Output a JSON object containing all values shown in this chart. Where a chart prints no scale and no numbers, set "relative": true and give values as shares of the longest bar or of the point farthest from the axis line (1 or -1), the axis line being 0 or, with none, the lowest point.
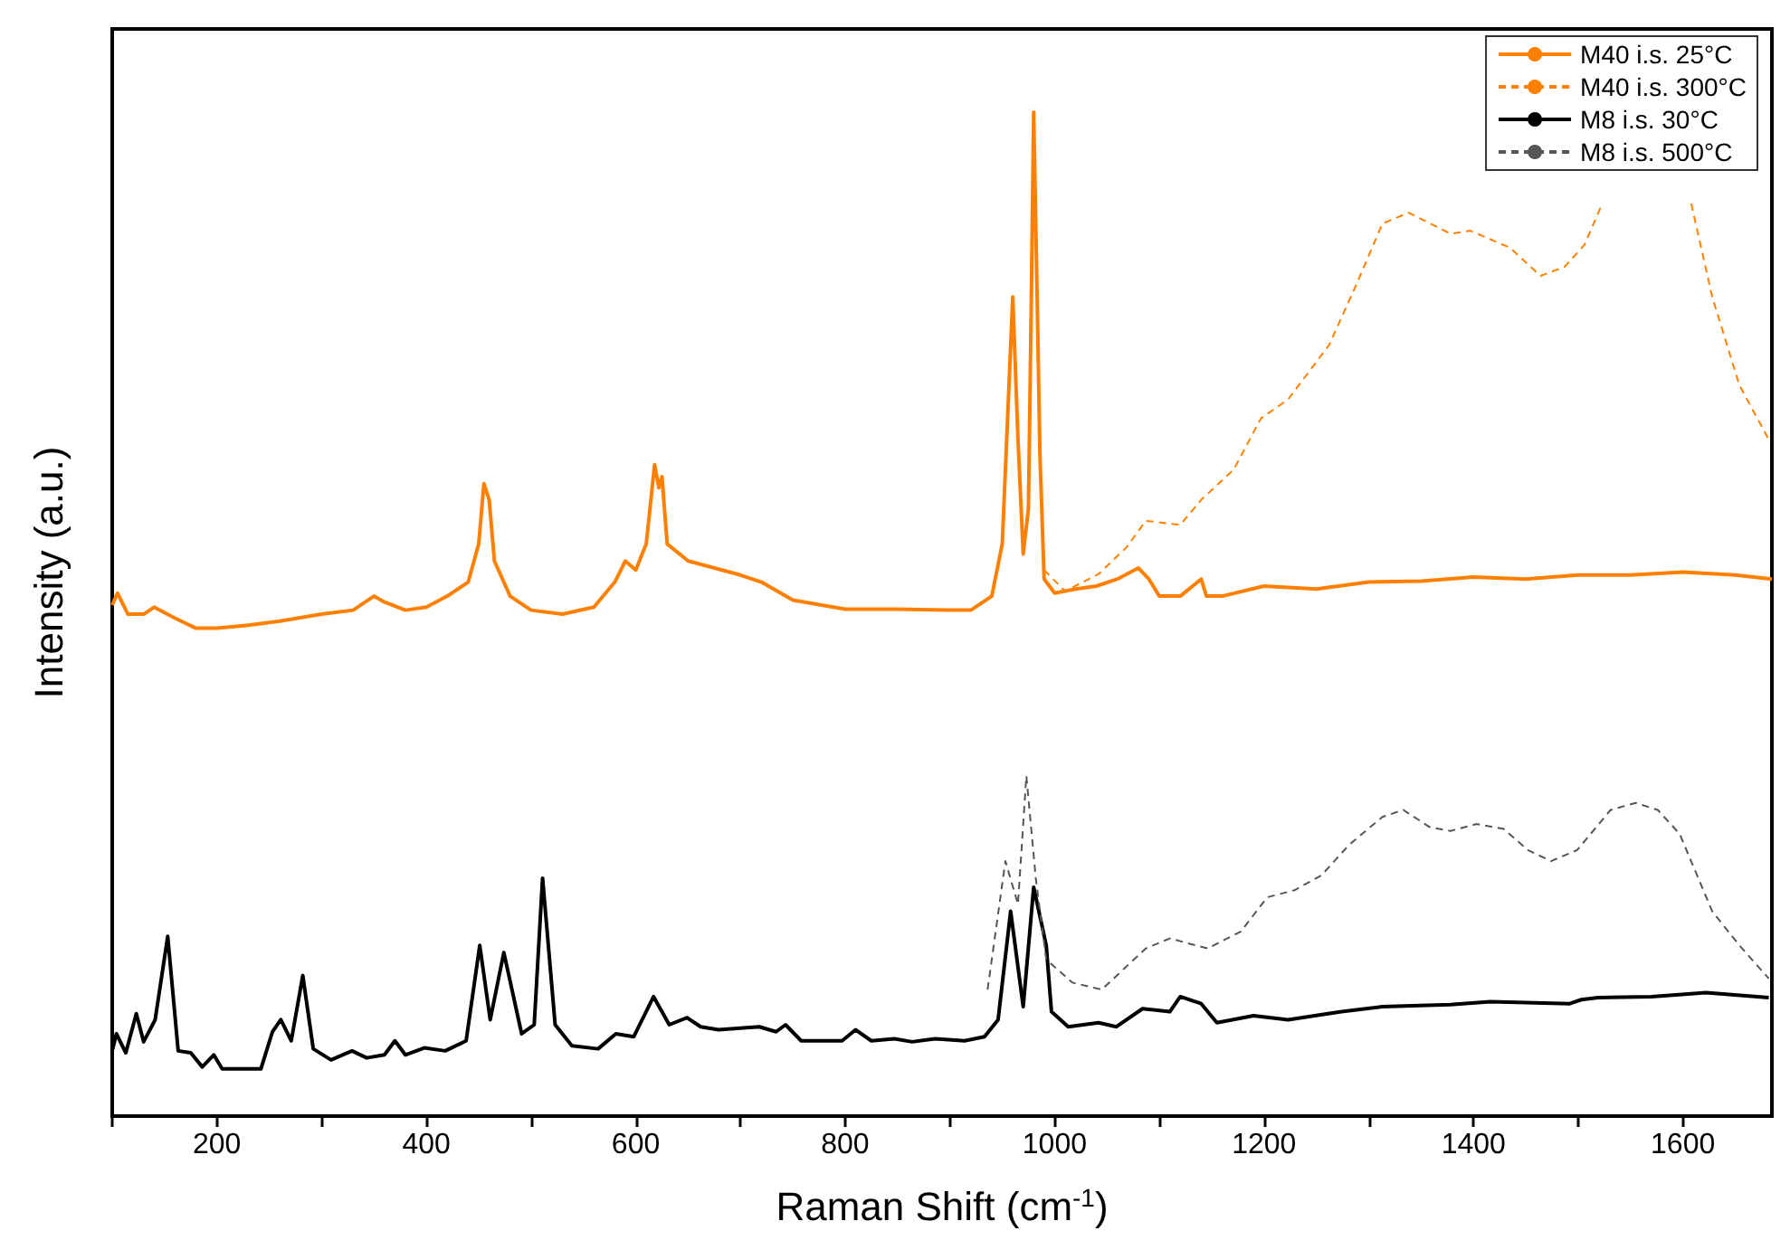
{
  "chart_data": {
    "type": "line",
    "relative": true,
    "xlabel": "Raman Shift (cm$^{-1}$)",
    "ylabel": "Intensity (a.u.)",
    "xlim": [
      100,
      1685
    ],
    "xticks": [
      {
        "value": 100,
        "label": null
      },
      200,
      {
        "value": 300,
        "label": null
      },
      400,
      {
        "value": 500,
        "label": null
      },
      600,
      {
        "value": 700,
        "label": null
      },
      800,
      {
        "value": 900,
        "label": null
      },
      1000,
      {
        "value": 1100,
        "label": null
      },
      1200,
      {
        "value": 1300,
        "label": null
      },
      1400,
      {
        "value": 1500,
        "label": null
      },
      1600
    ],
    "legend": "top right",
    "grid": false,
    "marker": "none",
    "series": [
      {
        "name": "M40 i.s. 25°C",
        "color": "#ff8000",
        "line_style": "solid",
        "x": [
          100,
          105,
          115,
          130,
          140,
          160,
          180,
          200,
          230,
          260,
          300,
          330,
          350,
          360,
          380,
          400,
          420,
          440,
          450,
          455,
          460,
          465,
          480,
          500,
          530,
          560,
          580,
          590,
          600,
          610,
          618,
          622,
          625,
          630,
          650,
          700,
          720,
          750,
          800,
          850,
          900,
          920,
          940,
          950,
          955,
          960,
          965,
          970,
          975,
          978,
          980,
          983,
          986,
          990,
          1000,
          1020,
          1040,
          1060,
          1080,
          1090,
          1100,
          1120,
          1140,
          1145,
          1160,
          1200,
          1250,
          1300,
          1350,
          1400,
          1450,
          1500,
          1550,
          1600,
          1650,
          1685
        ],
        "values": [
          0.509,
          0.521,
          0.5,
          0.5,
          0.507,
          0.496,
          0.486,
          0.486,
          0.489,
          0.493,
          0.5,
          0.504,
          0.518,
          0.512,
          0.504,
          0.507,
          0.518,
          0.532,
          0.57,
          0.63,
          0.614,
          0.553,
          0.518,
          0.504,
          0.5,
          0.507,
          0.532,
          0.553,
          0.544,
          0.57,
          0.649,
          0.626,
          0.637,
          0.57,
          0.553,
          0.539,
          0.532,
          0.514,
          0.505,
          0.505,
          0.504,
          0.504,
          0.518,
          0.57,
          0.693,
          0.816,
          0.675,
          0.56,
          0.605,
          0.833,
          1,
          0.833,
          0.658,
          0.535,
          0.521,
          0.525,
          0.528,
          0.535,
          0.546,
          0.535,
          0.518,
          0.518,
          0.535,
          0.518,
          0.518,
          0.528,
          0.525,
          0.532,
          0.533,
          0.537,
          0.535,
          0.539,
          0.539,
          0.542,
          0.539,
          0.535
        ]
      },
      {
        "name": "M40 i.s. 300°C",
        "color": "#ff8000",
        "line_style": "dashed",
        "x": [
          990,
          1010,
          1042,
          1069,
          1087,
          1120,
          1140,
          1171,
          1197,
          1223,
          1262,
          1288,
          1313,
          1338,
          1378,
          1397,
          1435,
          1464,
          1487,
          1506,
          1523,
          1560,
          1608,
          1628,
          1654,
          1682
        ],
        "values": [
          0.544,
          0.523,
          0.54,
          0.567,
          0.593,
          0.589,
          0.614,
          0.644,
          0.695,
          0.714,
          0.768,
          0.828,
          0.889,
          0.9,
          0.879,
          0.882,
          0.865,
          0.837,
          0.846,
          0.868,
          0.909,
          null,
          0.909,
          0.816,
          0.728,
          0.674
        ]
      },
      {
        "name": "M8 i.s. 30°C",
        "color": "#000000",
        "line_style": "solid",
        "x": [
          100,
          104,
          113,
          123,
          130,
          141,
          153,
          163,
          175,
          186,
          197,
          205,
          242,
          253,
          261,
          271,
          282,
          292,
          309,
          329,
          343,
          360,
          370,
          380,
          398,
          418,
          438,
          451,
          461,
          474,
          491,
          503,
          511,
          523,
          539,
          564,
          581,
          598,
          617,
          632,
          649,
          662,
          679,
          718,
          734,
          743,
          758,
          797,
          810,
          825,
          847,
          864,
          886,
          914,
          933,
          946,
          958,
          970,
          980,
          992,
          997,
          1013,
          1042,
          1059,
          1084,
          1110,
          1120,
          1140,
          1155,
          1190,
          1223,
          1274,
          1313,
          1378,
          1416,
          1492,
          1503,
          1519,
          1570,
          1622,
          1682
        ],
        "values": [
          0.065,
          0.082,
          0.063,
          0.102,
          0.074,
          0.096,
          0.179,
          0.065,
          0.063,
          0.049,
          0.061,
          0.047,
          0.047,
          0.084,
          0.096,
          0.075,
          0.14,
          0.067,
          0.056,
          0.065,
          0.058,
          0.061,
          0.075,
          0.061,
          0.068,
          0.065,
          0.075,
          0.17,
          0.096,
          0.163,
          0.082,
          0.091,
          0.237,
          0.091,
          0.07,
          0.067,
          0.082,
          0.079,
          0.119,
          0.091,
          0.098,
          0.089,
          0.086,
          0.089,
          0.084,
          0.091,
          0.075,
          0.075,
          0.086,
          0.075,
          0.077,
          0.074,
          0.077,
          0.075,
          0.079,
          0.096,
          0.204,
          0.109,
          0.228,
          0.17,
          0.104,
          0.089,
          0.093,
          0.089,
          0.107,
          0.104,
          0.119,
          0.112,
          0.093,
          0.1,
          0.096,
          0.104,
          0.109,
          0.111,
          0.114,
          0.112,
          0.116,
          0.118,
          0.119,
          0.123,
          0.118
        ]
      },
      {
        "name": "M8 i.s. 500°C",
        "color": "#555555",
        "line_style": "dashed",
        "x": [
          936,
          953,
          965,
          973,
          982,
          992,
          1017,
          1045,
          1087,
          1110,
          1146,
          1178,
          1203,
          1229,
          1255,
          1281,
          1313,
          1333,
          1358,
          1378,
          1403,
          1429,
          1452,
          1474,
          1499,
          1531,
          1555,
          1576,
          1597,
          1628,
          1654,
          1682
        ],
        "values": [
          0.126,
          0.254,
          0.211,
          0.339,
          0.237,
          0.156,
          0.133,
          0.126,
          0.167,
          0.177,
          0.167,
          0.184,
          0.218,
          0.225,
          0.24,
          0.27,
          0.298,
          0.305,
          0.288,
          0.284,
          0.291,
          0.286,
          0.265,
          0.254,
          0.265,
          0.305,
          0.312,
          0.305,
          0.281,
          0.204,
          0.17,
          0.137
        ]
      }
    ]
  }
}
